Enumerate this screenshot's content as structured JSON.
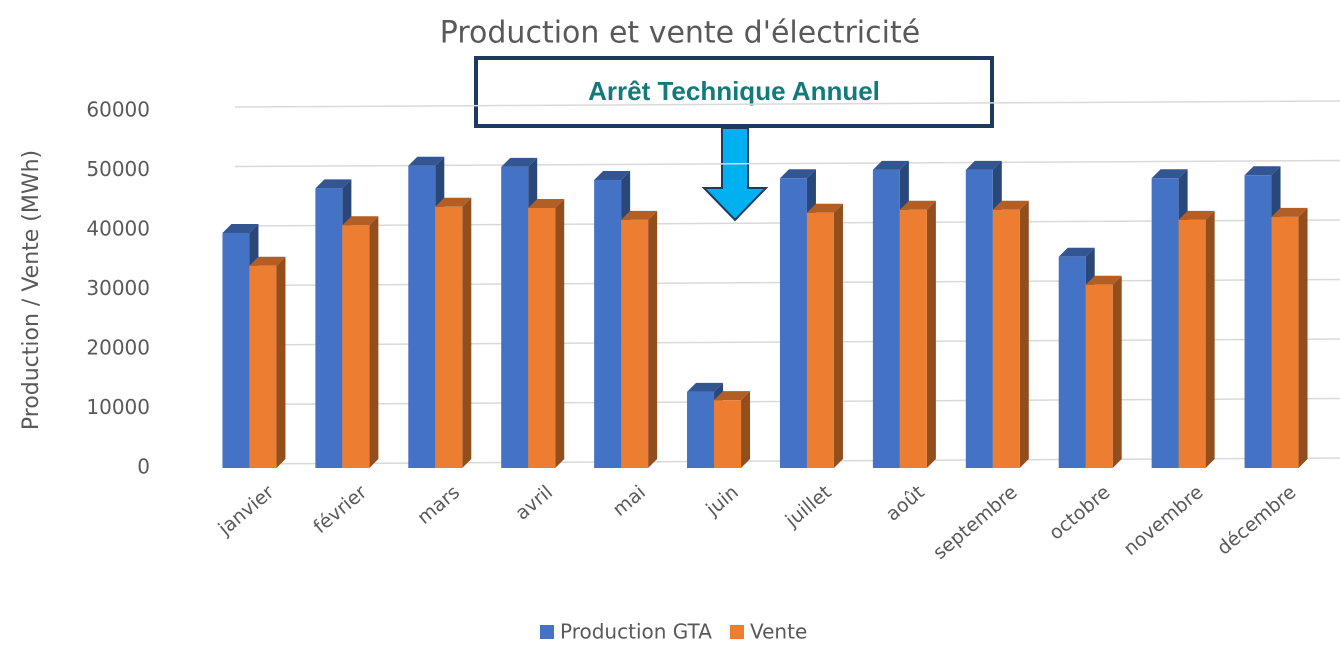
{
  "chart_data": {
    "type": "bar3d",
    "title": "Production et vente d'électricité",
    "y_label": "Production / Vente (MWh)",
    "categories": [
      "janvier",
      "février",
      "mars",
      "avril",
      "mai",
      "juin",
      "juillet",
      "août",
      "septembre",
      "octobre",
      "novembre",
      "décembre"
    ],
    "series": [
      {
        "name": "Production GTA",
        "color": "#4472c4",
        "values": [
          39500,
          47000,
          50800,
          50600,
          48400,
          12800,
          48700,
          50100,
          50100,
          35500,
          48700,
          49200
        ]
      },
      {
        "name": "Vente",
        "color": "#ed7d31",
        "values": [
          34000,
          40800,
          43900,
          43700,
          41700,
          11400,
          42900,
          43400,
          43400,
          30800,
          41700,
          42200
        ]
      }
    ],
    "ylim": [
      0,
      60000
    ],
    "yticks": [
      0,
      10000,
      20000,
      30000,
      40000,
      50000,
      60000
    ],
    "grid": true,
    "annotation": "Arrêt Technique Annuel",
    "legend": "bottom"
  }
}
